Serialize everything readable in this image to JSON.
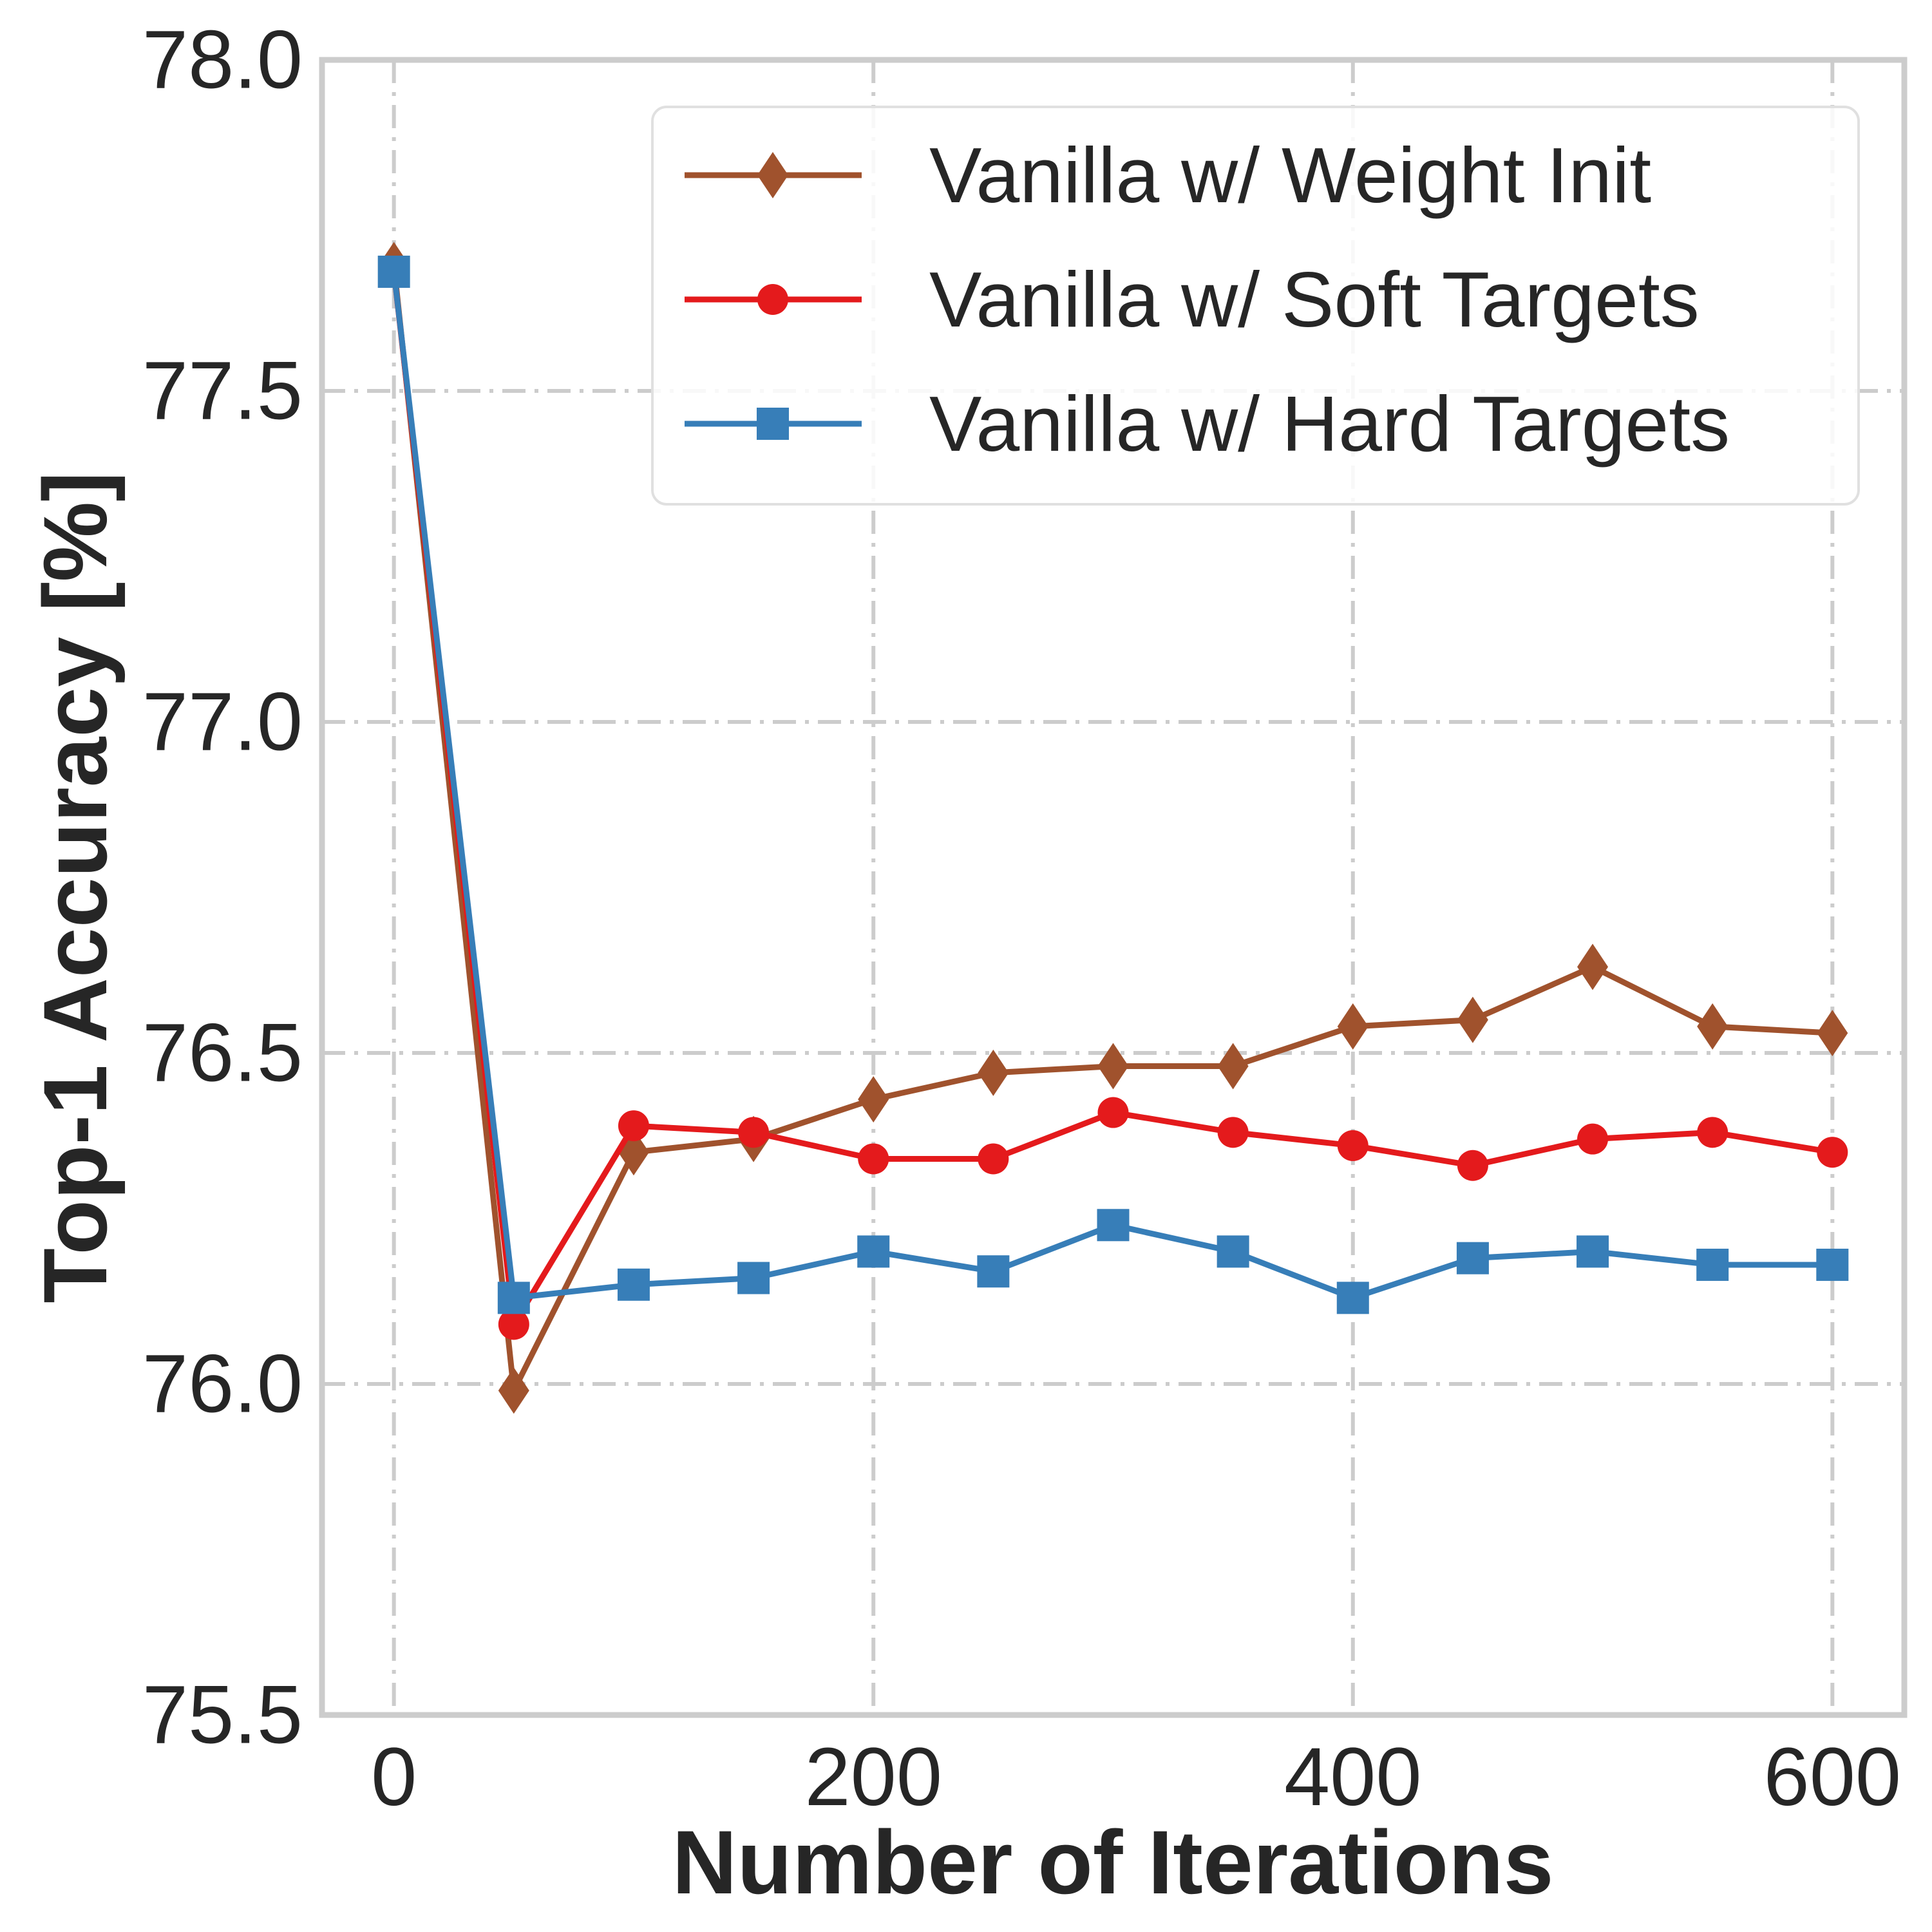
{
  "chart_data": {
    "type": "line",
    "xlabel": "Number of Iterations",
    "ylabel": "Top-1 Accuracy [%]",
    "xlim": [
      -30,
      630
    ],
    "ylim": [
      75.5,
      78.0
    ],
    "xticks": [
      0,
      200,
      400,
      600
    ],
    "xtick_labels": [
      "0",
      "200",
      "400",
      "600"
    ],
    "yticks": [
      75.5,
      76.0,
      76.5,
      77.0,
      77.5,
      78.0
    ],
    "ytick_labels": [
      "75.5",
      "76.0",
      "76.5",
      "77.0",
      "77.5",
      "78.0"
    ],
    "grid": true,
    "legend_position": "top-right",
    "x": [
      0,
      50,
      100,
      150,
      200,
      250,
      300,
      350,
      400,
      450,
      500,
      550,
      600
    ],
    "series": [
      {
        "name": "Vanilla w/ Weight Init",
        "color": "#a0522d",
        "marker": "diamond",
        "values": [
          77.69,
          75.99,
          76.35,
          76.37,
          76.43,
          76.47,
          76.48,
          76.48,
          76.54,
          76.55,
          76.63,
          76.54,
          76.53
        ]
      },
      {
        "name": "Vanilla w/ Soft Targets",
        "color": "#e41a1c",
        "marker": "circle",
        "values": [
          77.68,
          76.09,
          76.39,
          76.38,
          76.34,
          76.34,
          76.41,
          76.38,
          76.36,
          76.33,
          76.37,
          76.38,
          76.35
        ]
      },
      {
        "name": "Vanilla w/ Hard Targets",
        "color": "#377eb8",
        "marker": "square",
        "values": [
          77.68,
          76.13,
          76.15,
          76.16,
          76.2,
          76.17,
          76.24,
          76.2,
          76.13,
          76.19,
          76.2,
          76.18,
          76.18
        ]
      }
    ]
  }
}
